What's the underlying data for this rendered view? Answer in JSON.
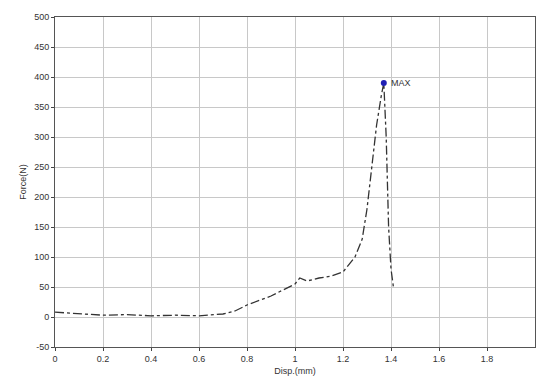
{
  "chart_data": {
    "type": "line",
    "x_label": "Disp.(mm)",
    "y_label": "Force(N)",
    "x": [
      0,
      0.1,
      0.2,
      0.3,
      0.4,
      0.5,
      0.6,
      0.7,
      0.75,
      0.8,
      0.85,
      0.9,
      0.95,
      1.0,
      1.02,
      1.05,
      1.1,
      1.15,
      1.2,
      1.25,
      1.28,
      1.3,
      1.32,
      1.34,
      1.36,
      1.37,
      1.38,
      1.39,
      1.4,
      1.41
    ],
    "values": [
      8,
      5,
      3,
      4,
      2,
      3,
      2,
      5,
      10,
      20,
      28,
      35,
      45,
      55,
      65,
      60,
      65,
      68,
      75,
      100,
      130,
      180,
      250,
      320,
      370,
      390,
      300,
      150,
      80,
      50
    ],
    "color": "#333333",
    "line_style": "dashdot",
    "xlim": [
      0,
      2
    ],
    "xticks": [
      0,
      0.2,
      0.4,
      0.6,
      0.8,
      1,
      1.2,
      1.4,
      1.6,
      1.8
    ],
    "ylim": [
      -50,
      500
    ],
    "yticks": [
      -50,
      0,
      50,
      100,
      150,
      200,
      250,
      300,
      350,
      400,
      450,
      500
    ],
    "grid": true,
    "annotations": [
      {
        "text": "MAX",
        "x": 1.37,
        "y": 390,
        "color": "#1f1fb4"
      }
    ]
  }
}
